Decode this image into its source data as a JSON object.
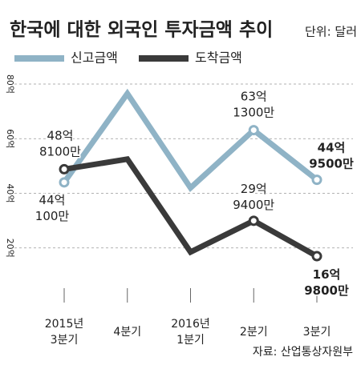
{
  "chart_data": {
    "type": "line",
    "title": "한국에 대한 외국인 투자금액 추이",
    "subtitle": "단위: 달러",
    "source": "자료: 산업통상자원부",
    "categories": [
      "2015년\n3분기",
      "4분기",
      "2016년\n1분기",
      "2분기",
      "3분기"
    ],
    "series": [
      {
        "name": "신고금액",
        "color": "#8fb3c6",
        "values": [
          44.01,
          76.5,
          42,
          63.13,
          44.95
        ],
        "value_labels": [
          "44억\n100만",
          null,
          null,
          "63억\n1300만",
          "44억\n9500만"
        ]
      },
      {
        "name": "도착금액",
        "color": "#3a3a3a",
        "values": [
          48.81,
          52.5,
          18.5,
          29.94,
          16.98
        ],
        "value_labels": [
          "48억\n8100만",
          null,
          null,
          "29억\n9400만",
          "16억\n9800만"
        ]
      }
    ],
    "ylim": [
      0,
      80
    ],
    "yticks": [
      {
        "value": 20,
        "label": "20억"
      },
      {
        "value": 40,
        "label": "40억"
      },
      {
        "value": 60,
        "label": "60억"
      },
      {
        "value": 80,
        "label": "80억"
      }
    ],
    "grid": true
  }
}
